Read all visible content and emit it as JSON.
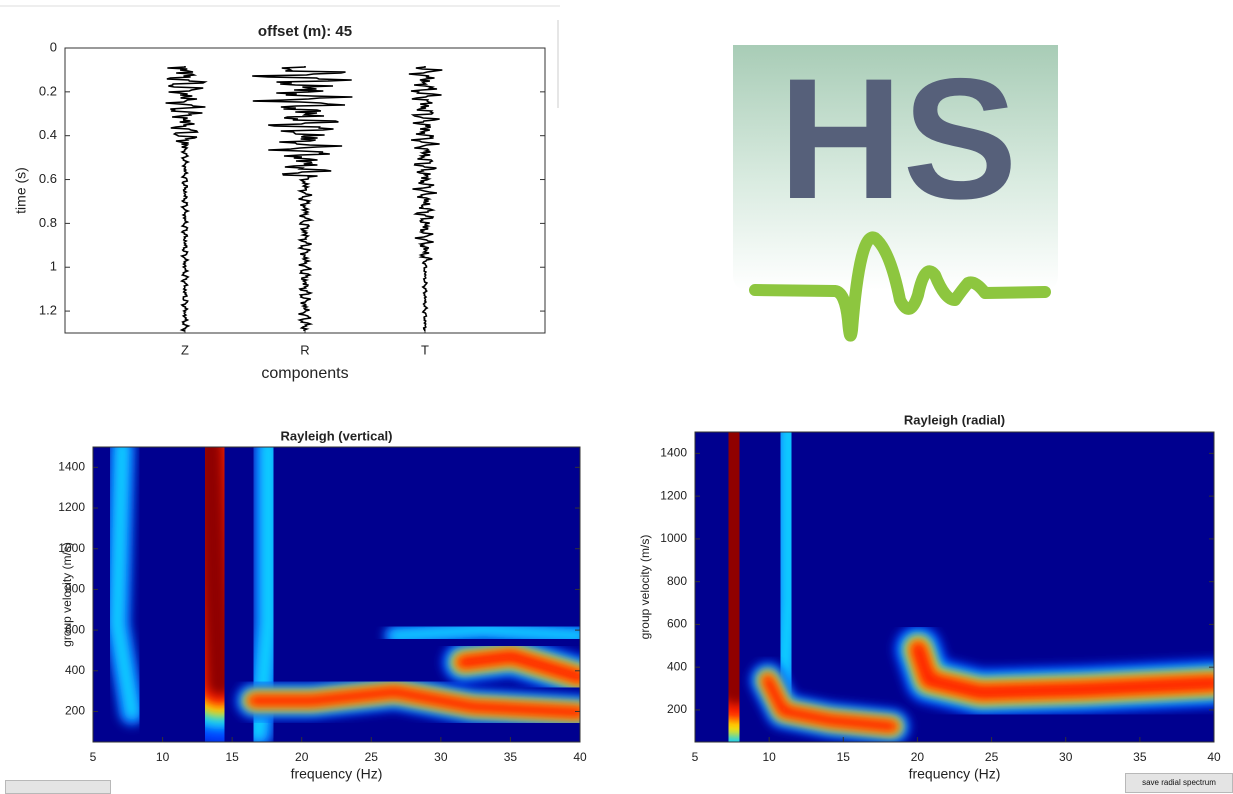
{
  "chart_data": [
    {
      "type": "trace",
      "title": "offset (m): 45",
      "xlabel": "components",
      "ylabel": "time (s)",
      "categories": [
        "Z",
        "R",
        "T"
      ],
      "ylim": [
        0,
        1.3
      ],
      "yticks": [
        0,
        0.2,
        0.4,
        0.6,
        0.8,
        1,
        1.2
      ],
      "y_reversed": true
    },
    {
      "type": "heatmap",
      "title": "Rayleigh (vertical)",
      "xlabel": "frequency (Hz)",
      "ylabel": "group velocity (m/s)",
      "xlim": [
        5,
        40
      ],
      "xticks": [
        5,
        10,
        15,
        20,
        25,
        30,
        35,
        40
      ],
      "ylim": [
        50,
        1500
      ],
      "yticks": [
        200,
        400,
        600,
        800,
        1000,
        1200,
        1400
      ]
    },
    {
      "type": "heatmap",
      "title": "Rayleigh (radial)",
      "xlabel": "frequency (Hz)",
      "ylabel": "group velocity (m/s)",
      "xlim": [
        5,
        40
      ],
      "xticks": [
        5,
        10,
        15,
        20,
        25,
        30,
        35,
        40
      ],
      "ylim": [
        50,
        1500
      ],
      "yticks": [
        200,
        400,
        600,
        800,
        1000,
        1200,
        1400
      ]
    }
  ],
  "logo": {
    "text": "HS"
  },
  "buttons": [
    {
      "label": "save radial spectrum"
    }
  ]
}
